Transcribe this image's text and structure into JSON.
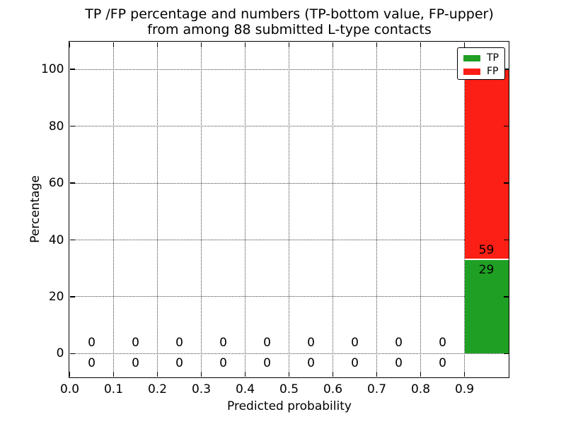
{
  "chart_data": {
    "type": "bar",
    "stacked": true,
    "title_line1": "TP /FP percentage and numbers (TP-bottom value, FP-upper)",
    "title_line2": "from among 88 submitted L-type contacts",
    "xlabel": "Predicted probability",
    "ylabel": "Percentage",
    "total_contacts": 88,
    "background_color": "#ffffff",
    "grid": true,
    "grid_style": "dotted",
    "xlim": [
      0.0,
      1.0
    ],
    "ylim": [
      -8.1,
      109.5
    ],
    "xtick_labels": [
      "0.0",
      "0.1",
      "0.2",
      "0.3",
      "0.4",
      "0.5",
      "0.6",
      "0.7",
      "0.8",
      "0.9"
    ],
    "xtick_values": [
      0.0,
      0.1,
      0.2,
      0.3,
      0.4,
      0.5,
      0.6,
      0.7,
      0.8,
      0.9
    ],
    "ytick_values": [
      0,
      20,
      40,
      60,
      80,
      100
    ],
    "bin_width": 0.1,
    "bin_left_edges": [
      0.0,
      0.1,
      0.2,
      0.3,
      0.4,
      0.5,
      0.6,
      0.7,
      0.8,
      0.9
    ],
    "series": [
      {
        "name": "TP",
        "color": "#1fa024",
        "counts": [
          0,
          0,
          0,
          0,
          0,
          0,
          0,
          0,
          0,
          29
        ],
        "percent": [
          0,
          0,
          0,
          0,
          0,
          0,
          0,
          0,
          0,
          32.95
        ]
      },
      {
        "name": "FP",
        "color": "#fb1f15",
        "counts": [
          0,
          0,
          0,
          0,
          0,
          0,
          0,
          0,
          0,
          59
        ],
        "percent": [
          0,
          0,
          0,
          0,
          0,
          0,
          0,
          0,
          0,
          67.05
        ]
      }
    ],
    "count_label_rows": {
      "fp": {
        "zero_y": 3.8,
        "bar_y": 36.5
      },
      "tp": {
        "zero_y": -3.4,
        "bar_y": 29.5
      }
    },
    "legend": {
      "position": "upper right",
      "entries": [
        {
          "label": "TP",
          "color": "#1fa024"
        },
        {
          "label": "FP",
          "color": "#fb1f15"
        }
      ]
    }
  }
}
